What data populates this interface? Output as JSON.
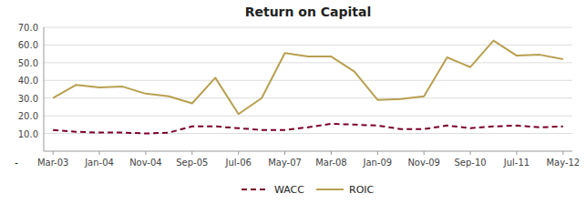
{
  "chart_data": {
    "type": "line",
    "title": "Return on Capital",
    "annotation": "-",
    "x": [
      0,
      0.5,
      1.0,
      1.5,
      2.0,
      2.5,
      3.0,
      3.5,
      4.0,
      4.5,
      5.0,
      5.5,
      6.0,
      6.5,
      7.0,
      7.5,
      8.0,
      8.5,
      9.0,
      9.5,
      10.0,
      10.5,
      11.0
    ],
    "series": [
      {
        "name": "WACC",
        "color": "#7B0028",
        "line_style": "dashed",
        "values": [
          12.0,
          11.0,
          10.5,
          10.5,
          10.0,
          10.5,
          14.0,
          14.0,
          13.0,
          12.0,
          12.0,
          13.5,
          15.5,
          15.0,
          14.5,
          12.5,
          12.5,
          14.5,
          13.0,
          14.0,
          14.5,
          13.5,
          14.0
        ]
      },
      {
        "name": "ROIC",
        "color": "#B8A050",
        "line_style": "solid",
        "values": [
          30.0,
          37.5,
          36.0,
          36.5,
          32.5,
          31.0,
          27.0,
          41.5,
          21.0,
          30.0,
          55.5,
          53.5,
          53.5,
          45.0,
          29.0,
          29.5,
          31.0,
          53.0,
          47.5,
          62.5,
          54.0,
          54.5,
          52.0
        ]
      }
    ],
    "xlim": [
      -0.2,
      11.2
    ],
    "xticks": [
      {
        "value": 0,
        "label": "Mar-03"
      },
      {
        "value": 1,
        "label": "Jan-04"
      },
      {
        "value": 2,
        "label": "Nov-04"
      },
      {
        "value": 3,
        "label": "Sep-05"
      },
      {
        "value": 4,
        "label": "Jul-06"
      },
      {
        "value": 5,
        "label": "May-07"
      },
      {
        "value": 6,
        "label": "Mar-08"
      },
      {
        "value": 7,
        "label": "Jan-09"
      },
      {
        "value": 8,
        "label": "Nov-09"
      },
      {
        "value": 9,
        "label": "Sep-10"
      },
      {
        "value": 10,
        "label": "Jul-11"
      },
      {
        "value": 11,
        "label": "May-12"
      }
    ],
    "ylim": [
      0,
      70
    ],
    "yticks": [
      {
        "value": 10,
        "label": "10.0"
      },
      {
        "value": 20,
        "label": "20.0"
      },
      {
        "value": 30,
        "label": "30.0"
      },
      {
        "value": 40,
        "label": "40.0"
      },
      {
        "value": 50,
        "label": "50.0"
      },
      {
        "value": 60,
        "label": "60.0"
      },
      {
        "value": 70,
        "label": "70.0"
      }
    ],
    "grid": true,
    "legend": "bottom"
  }
}
